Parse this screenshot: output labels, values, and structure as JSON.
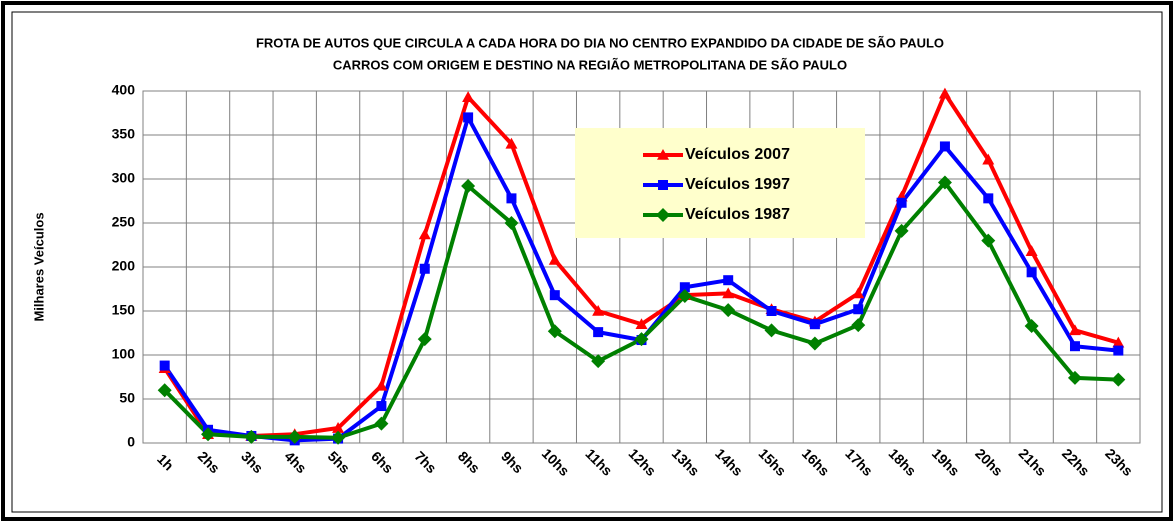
{
  "chart_data": {
    "type": "line",
    "title": "FROTA DE AUTOS QUE CIRCULA A CADA HORA DO DIA NO CENTRO EXPANDIDO  DA CIDADE DE SÃO PAULO",
    "subtitle": "CARROS COM ORIGEM E DESTINO NA REGIÃO METROPOLITANA DE SÃO PAULO",
    "y_label": "Milhares Veículos",
    "categories": [
      "1h",
      "2hs",
      "3hs",
      "4hs",
      "5hs",
      "6hs",
      "7hs",
      "8hs",
      "9hs",
      "10hs",
      "11hs",
      "12hs",
      "13hs",
      "14hs",
      "15hs",
      "16hs",
      "17hs",
      "18hs",
      "19hs",
      "20hs",
      "21hs",
      "22hs",
      "23hs"
    ],
    "series": [
      {
        "name": "Veículos 2007",
        "color": "#ff0000",
        "marker": "triangle",
        "values": [
          85,
          10,
          8,
          10,
          17,
          65,
          237,
          393,
          340,
          208,
          150,
          135,
          168,
          170,
          152,
          138,
          170,
          280,
          397,
          322,
          218,
          128,
          114
        ]
      },
      {
        "name": "Veículos 1997",
        "color": "#0000ff",
        "marker": "square",
        "values": [
          88,
          15,
          8,
          3,
          5,
          42,
          198,
          370,
          278,
          168,
          126,
          117,
          177,
          185,
          150,
          135,
          152,
          273,
          337,
          278,
          194,
          110,
          105
        ]
      },
      {
        "name": "Veículos 1987",
        "color": "#008000",
        "marker": "diamond",
        "values": [
          60,
          10,
          7,
          7,
          6,
          22,
          118,
          292,
          250,
          127,
          93,
          118,
          167,
          151,
          128,
          113,
          134,
          241,
          296,
          230,
          133,
          74,
          72
        ]
      }
    ],
    "ylim": [
      0,
      400
    ],
    "yticks": [
      0,
      50,
      100,
      150,
      200,
      250,
      300,
      350,
      400
    ],
    "grid": true,
    "legend": "upper center"
  }
}
